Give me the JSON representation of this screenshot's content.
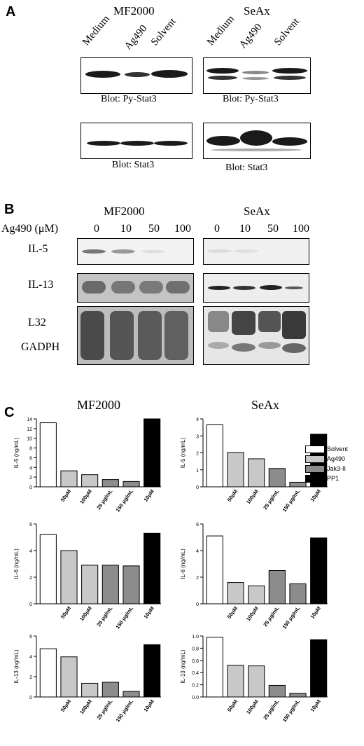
{
  "panelA": {
    "letter": "A",
    "left": {
      "title": "MF2000",
      "lanes": [
        "Medium",
        "Ag490",
        "Solvent"
      ],
      "blot1": "Blot: Py-Stat3",
      "blot2": "Blot: Stat3"
    },
    "right": {
      "title": "SeAx",
      "lanes": [
        "Medium",
        "Ag490",
        "Solvent"
      ],
      "blot1": "Blot: Py-Stat3",
      "blot2": "Blot: Stat3"
    }
  },
  "panelB": {
    "letter": "B",
    "title_left": "MF2000",
    "title_right": "SeAx",
    "ag_label": "Ag490 (μM)",
    "concs": [
      "0",
      "10",
      "50",
      "100"
    ],
    "rows": [
      "IL-5",
      "IL-13",
      "L32",
      "GADPH"
    ]
  },
  "panelC": {
    "letter": "C",
    "legend": [
      {
        "label": "Solvent",
        "color": "#ffffff"
      },
      {
        "label": "Ag490",
        "color": "#c8c8c8"
      },
      {
        "label": "Jak3-II",
        "color": "#8c8c8c"
      },
      {
        "label": "PP1",
        "color": "#000000"
      }
    ]
  },
  "chart_data": [
    {
      "type": "bar",
      "title": "MF2000",
      "ylabel": "IL-5 (ng/mL)",
      "ylim": [
        0,
        14
      ],
      "yticks": [
        0,
        2,
        4,
        6,
        8,
        10,
        12,
        14
      ],
      "categories": [
        "",
        "50μM",
        "100μM",
        "25 μg/mL",
        "150 μg/mL",
        "10μM"
      ],
      "values": [
        13.2,
        3.3,
        2.5,
        1.5,
        1.1,
        14.0
      ],
      "groups": [
        0,
        1,
        1,
        2,
        2,
        3
      ]
    },
    {
      "type": "bar",
      "title": "SeAx",
      "ylabel": "IL-5 (ng/mL)",
      "ylim": [
        0,
        4
      ],
      "yticks": [
        0,
        1,
        2,
        3,
        4
      ],
      "categories": [
        "",
        "50μM",
        "100μM",
        "25 μg/mL",
        "150 μg/mL",
        "10μM"
      ],
      "values": [
        3.65,
        2.02,
        1.65,
        1.08,
        0.27,
        3.1
      ],
      "groups": [
        0,
        1,
        1,
        2,
        2,
        3
      ]
    },
    {
      "type": "bar",
      "title": "",
      "ylabel": "IL-6 (ng/mL)",
      "ylim": [
        0,
        6
      ],
      "yticks": [
        0,
        2,
        4,
        6
      ],
      "categories": [
        "",
        "50μM",
        "100μM",
        "25 μg/mL",
        "150 μg/mL",
        "10μM"
      ],
      "values": [
        5.2,
        4.0,
        2.9,
        2.9,
        2.85,
        5.3
      ],
      "groups": [
        0,
        1,
        1,
        2,
        2,
        3
      ]
    },
    {
      "type": "bar",
      "title": "",
      "ylabel": "IL-6 (ng/mL)",
      "ylim": [
        0,
        6
      ],
      "yticks": [
        0,
        2,
        4,
        6
      ],
      "categories": [
        "",
        "50μM",
        "100μM",
        "25 μg/mL",
        "150 μg/mL",
        "10μM"
      ],
      "values": [
        5.1,
        1.6,
        1.35,
        2.5,
        1.5,
        4.95
      ],
      "groups": [
        0,
        1,
        1,
        2,
        2,
        3
      ]
    },
    {
      "type": "bar",
      "title": "",
      "ylabel": "IL-13 (ng/mL)",
      "ylim": [
        0,
        6
      ],
      "yticks": [
        0,
        2,
        4,
        6
      ],
      "categories": [
        "",
        "50μM",
        "100μM",
        "25 μg/mL",
        "150 μg/mL",
        "10μM"
      ],
      "values": [
        4.75,
        3.95,
        1.35,
        1.45,
        0.55,
        5.15
      ],
      "groups": [
        0,
        1,
        1,
        2,
        2,
        3
      ]
    },
    {
      "type": "bar",
      "title": "",
      "ylabel": "IL-13 (ng/mL)",
      "ylim": [
        0,
        1.0
      ],
      "yticks": [
        0.0,
        0.2,
        0.4,
        0.6,
        0.8,
        1.0
      ],
      "categories": [
        "",
        "50μM",
        "100μM",
        "25 μg/mL",
        "150 μg/mL",
        "10μM"
      ],
      "values": [
        0.98,
        0.52,
        0.51,
        0.19,
        0.06,
        0.94
      ],
      "groups": [
        0,
        1,
        1,
        2,
        2,
        3
      ]
    }
  ]
}
